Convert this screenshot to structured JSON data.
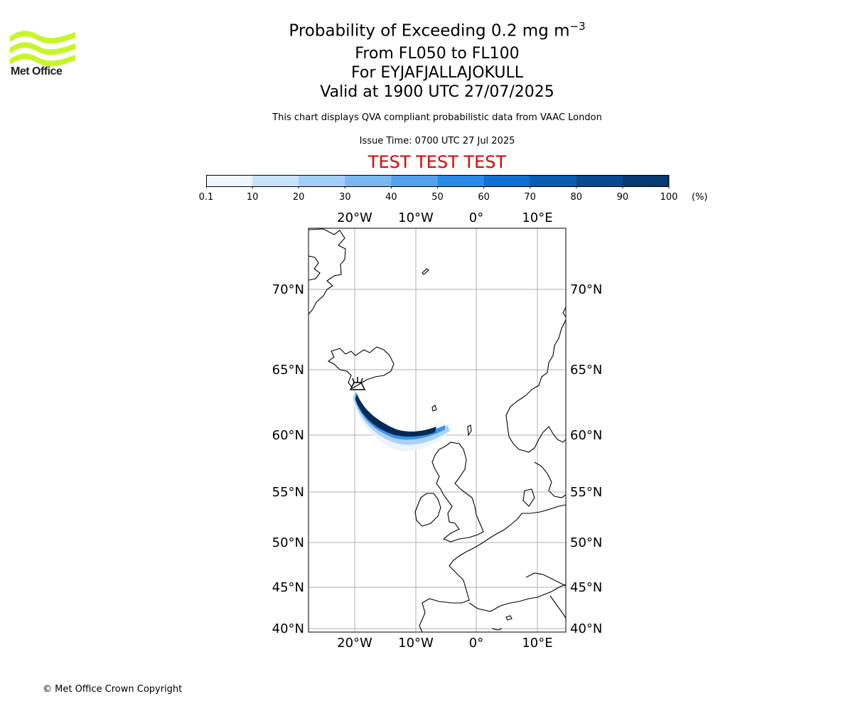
{
  "header": {
    "title_main": "Probability of Exceeding 0.2 mg m",
    "title_exp": "−3",
    "level_range": "From FL050 to FL100",
    "volcano": "For EYJAFJALLAJOKULL",
    "valid_time": "Valid at 1900 UTC 27/07/2025",
    "description": "This chart displays QVA compliant probabilistic data from VAAC London",
    "issue_time": "Issue Time: 0700 UTC 27 Jul 2025",
    "test_banner": "TEST TEST TEST"
  },
  "logo": {
    "text": "Met Office",
    "color": "#c8f52a"
  },
  "colorbar": {
    "ticks": [
      "0.1",
      "10",
      "20",
      "30",
      "40",
      "50",
      "60",
      "70",
      "80",
      "90",
      "100"
    ],
    "unit": "(%)",
    "colors": [
      "#eef6ff",
      "#c8e2fb",
      "#a3cef7",
      "#7ab8f2",
      "#52a2ee",
      "#2a8ae8",
      "#0f6fd2",
      "#0a5bb3",
      "#074a93",
      "#053a73",
      "#032a54"
    ]
  },
  "map": {
    "lon_labels": [
      "20°W",
      "10°W",
      "0°",
      "10°E"
    ],
    "lat_labels": [
      "70°N",
      "65°N",
      "60°N",
      "55°N",
      "50°N",
      "45°N",
      "40°N"
    ],
    "gridline_color": "#b0b0b0",
    "volcano_icon": "volcano-icon"
  },
  "footer": {
    "copyright": "© Met Office Crown Copyright"
  }
}
